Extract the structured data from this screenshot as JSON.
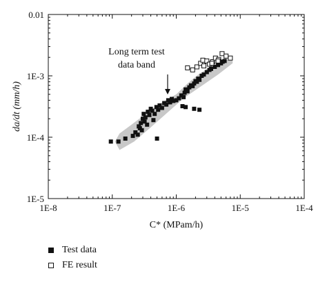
{
  "chart_data": {
    "type": "scatter",
    "title": "",
    "xlabel": "C* (MPam/h)",
    "ylabel": "da/dt (mm/h)",
    "x_scale": "log",
    "y_scale": "log",
    "xlim": [
      1e-08,
      0.0001
    ],
    "ylim": [
      1e-05,
      0.01
    ],
    "x_ticks": [
      "1E-8",
      "1E-7",
      "1E-6",
      "1E-5",
      "1E-4"
    ],
    "y_ticks": [
      "1E-5",
      "1E-4",
      "1E-3",
      "0.01"
    ],
    "grid": false,
    "legend_position": "bottom-left",
    "band": {
      "label": "Long term test\ndata band",
      "polygon": [
        [
          1.3e-07,
          6.2e-05
        ],
        [
          2.2e-07,
          8.5e-05
        ],
        [
          4e-07,
          0.000145
        ],
        [
          7.2e-07,
          0.00025
        ],
        [
          1.3e-06,
          0.00043
        ],
        [
          2.3e-06,
          0.00065
        ],
        [
          4.5e-06,
          0.00105
        ],
        [
          7.6e-06,
          0.0016
        ],
        [
          7.6e-06,
          0.00185
        ],
        [
          5e-06,
          0.00185
        ],
        [
          3.2e-06,
          0.00135
        ],
        [
          2.2e-06,
          0.00105
        ],
        [
          1.5e-06,
          0.00075
        ],
        [
          1e-06,
          0.0005
        ],
        [
          6e-07,
          0.00037
        ],
        [
          3.5e-07,
          0.00025
        ],
        [
          2e-07,
          0.00016
        ],
        [
          1.3e-07,
          0.000115
        ],
        [
          1.1e-07,
          8.5e-05
        ]
      ],
      "color": "#c8c8c8"
    },
    "series": [
      {
        "name": "Test data",
        "marker": "filled-square",
        "color": "#111111",
        "x": [
          9.5e-08,
          1.25e-07,
          1.6e-07,
          2.1e-07,
          2.3e-07,
          2.5e-07,
          2.6e-07,
          2.7e-07,
          2.8e-07,
          2.9e-07,
          3e-07,
          3.1e-07,
          3.2e-07,
          3.3e-07,
          3.5e-07,
          3.6e-07,
          3.8e-07,
          4e-07,
          4.2e-07,
          4.4e-07,
          4.6e-07,
          4.9e-07,
          5.2e-07,
          5.5e-07,
          6e-07,
          6.5e-07,
          7e-07,
          7.5e-07,
          8e-07,
          8.5e-07,
          9e-07,
          1e-06,
          1.1e-06,
          1.2e-06,
          1.3e-06,
          1.35e-06,
          1.4e-06,
          1.5e-06,
          1.6e-06,
          1.7e-06,
          1.8e-06,
          1.9e-06,
          2e-06,
          2.1e-06,
          2.2e-06,
          2.3e-06,
          2.5e-06,
          2.7e-06,
          3e-06,
          3.3e-06,
          3.5e-06,
          4e-06,
          4.5e-06,
          5e-06,
          5.3e-06,
          5.7e-06,
          1.25e-06,
          1.4e-06,
          1.9e-06,
          2.3e-06,
          5e-07
        ],
        "y": [
          8.5e-05,
          8.5e-05,
          9.5e-05,
          0.000105,
          0.00012,
          0.00011,
          0.00015,
          0.00014,
          0.00017,
          0.00013,
          0.0002,
          0.00024,
          0.00018,
          0.00021,
          0.00016,
          0.00026,
          0.00023,
          0.00029,
          0.00027,
          0.00019,
          0.00024,
          0.00031,
          0.00028,
          0.00033,
          0.0003,
          0.00036,
          0.00034,
          0.0004,
          0.00037,
          0.00042,
          0.00039,
          0.0004,
          0.00043,
          0.00048,
          0.00045,
          0.00053,
          0.0006,
          0.00056,
          0.00065,
          0.0007,
          0.00068,
          0.00075,
          0.00082,
          0.0008,
          0.0009,
          0.00086,
          0.001,
          0.00105,
          0.00115,
          0.00125,
          0.0013,
          0.0014,
          0.0015,
          0.0016,
          0.0017,
          0.00175,
          0.00032,
          0.00031,
          0.00029,
          0.00028,
          9.5e-05
        ]
      },
      {
        "name": "FE result",
        "marker": "hollow-square",
        "color": "#111111",
        "x": [
          1.5e-06,
          1.8e-06,
          2.1e-06,
          2.4e-06,
          2.6e-06,
          3e-06,
          3.3e-06,
          3.7e-06,
          4.1e-06,
          4.6e-06,
          5.2e-06,
          6e-06,
          7e-06,
          2.7e-06,
          3.6e-06,
          4.5e-06
        ],
        "y": [
          0.00135,
          0.00125,
          0.0014,
          0.0016,
          0.0018,
          0.00175,
          0.00155,
          0.0017,
          0.00195,
          0.00185,
          0.0023,
          0.0021,
          0.00195,
          0.00145,
          0.0016,
          0.00175
        ]
      }
    ]
  }
}
